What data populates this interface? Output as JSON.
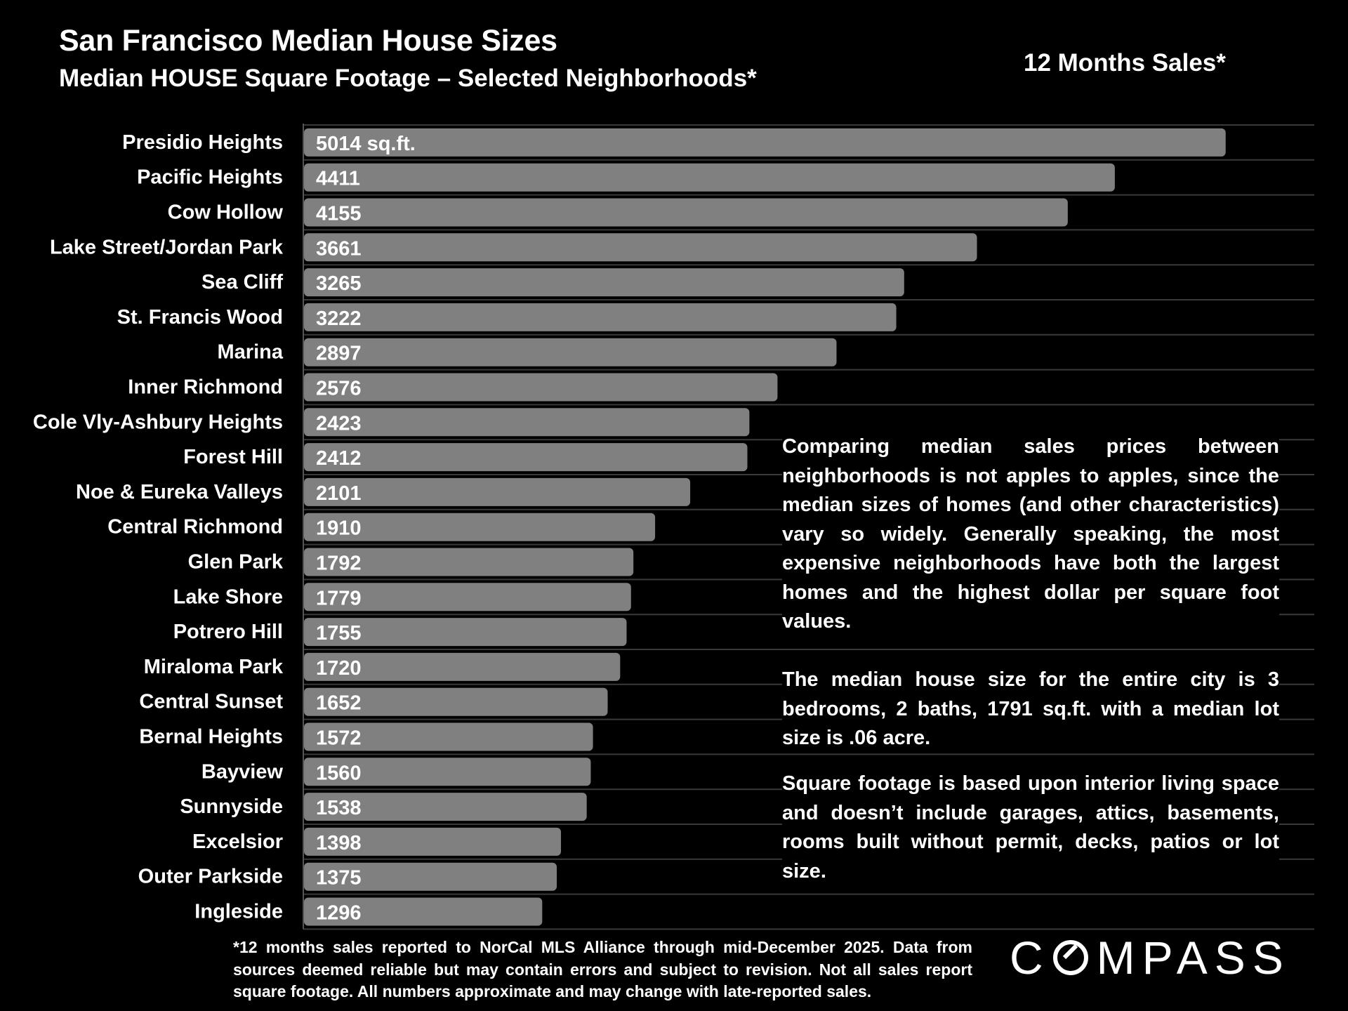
{
  "header": {
    "title": "San Francisco Median House Sizes",
    "subtitle": "Median HOUSE Square Footage – Selected Neighborhoods*",
    "period": "12 Months Sales*"
  },
  "chart_data": {
    "type": "bar",
    "orientation": "horizontal",
    "categories": [
      "Presidio Heights",
      "Pacific Heights",
      "Cow Hollow",
      "Lake Street/Jordan Park",
      "Sea Cliff",
      "St. Francis Wood",
      "Marina",
      "Inner Richmond",
      "Cole Vly-Ashbury Heights",
      "Forest Hill",
      "Noe & Eureka Valleys",
      "Central Richmond",
      "Glen Park",
      "Lake Shore",
      "Potrero Hill",
      "Miraloma Park",
      "Central Sunset",
      "Bernal Heights",
      "Bayview",
      "Sunnyside",
      "Excelsior",
      "Outer Parkside",
      "Ingleside"
    ],
    "values": [
      5014,
      4411,
      4155,
      3661,
      3265,
      3222,
      2897,
      2576,
      2423,
      2412,
      2101,
      1910,
      1792,
      1779,
      1755,
      1720,
      1652,
      1572,
      1560,
      1538,
      1398,
      1375,
      1296
    ],
    "data_labels": [
      "5014 sq.ft.",
      "4411",
      "4155",
      "3661",
      "3265",
      "3222",
      "2897",
      "2576",
      "2423",
      "2412",
      "2101",
      "1910",
      "1792",
      "1779",
      "1755",
      "1720",
      "1652",
      "1572",
      "1560",
      "1538",
      "1398",
      "1375",
      "1296"
    ],
    "xlim": [
      0,
      5500
    ],
    "grid": true,
    "bar_color": "#808080"
  },
  "notes": {
    "paragraph_1": "Comparing median sales prices between neighborhoods is not apples to apples, since the median sizes of homes (and other characteristics) vary so widely. Generally speaking, the most expensive neighborhoods have both the largest homes and the highest dollar per square foot values.",
    "paragraph_2": "The median house size for the entire city is 3 bedrooms, 2 baths, 1791 sq.ft. with a median lot size is .06 acre.",
    "paragraph_3": "Square footage is based upon interior living space and doesn’t include garages, attics, basements, rooms built without permit, decks, patios or lot size."
  },
  "footnote": "*12 months sales reported to NorCal MLS Alliance through mid-December 2025. Data from sources deemed reliable but may contain errors and subject to revision. Not all sales report square footage. All numbers approximate and may change with late-reported sales.",
  "logo": {
    "text_left": "C",
    "text_right": "MPASS",
    "full": "COMPASS"
  }
}
